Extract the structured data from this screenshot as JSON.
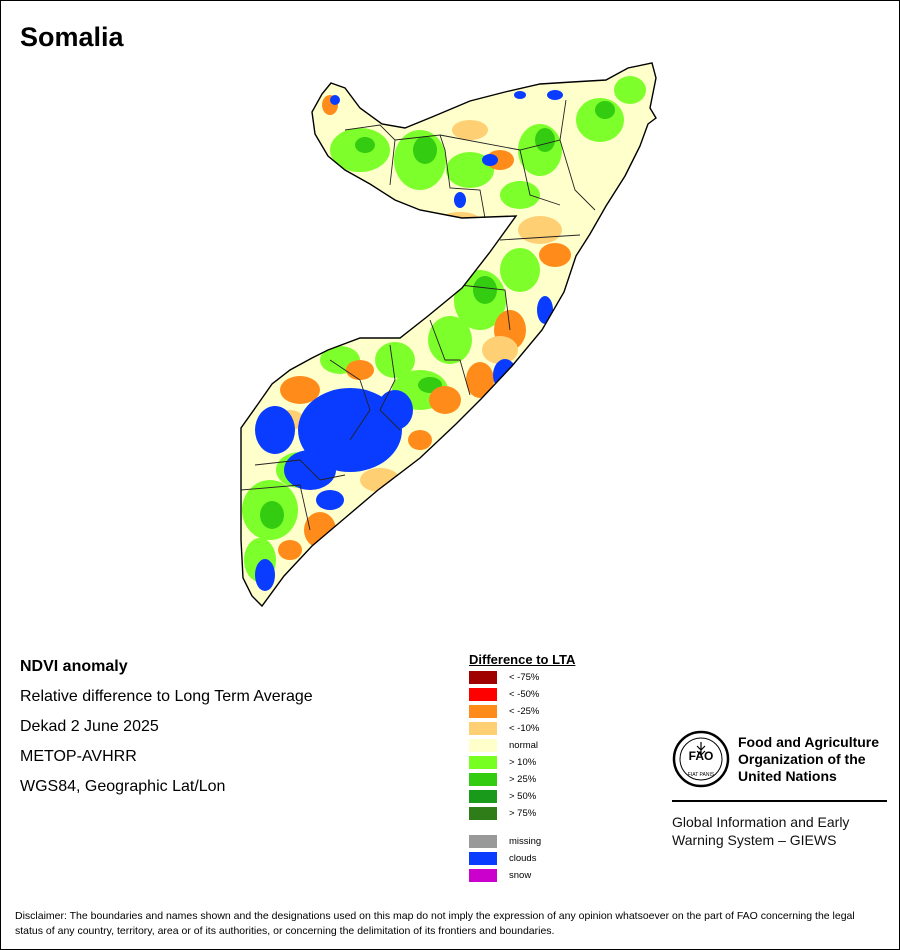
{
  "title": "Somalia",
  "info": {
    "product": "NDVI anomaly",
    "description": "Relative difference to Long Term Average",
    "period": "Dekad 2 June 2025",
    "sensor": "METOP-AVHRR",
    "projection": "WGS84, Geographic Lat/Lon"
  },
  "legend": {
    "title": "Difference to LTA",
    "classes": [
      {
        "label": "< -75%",
        "color": "#a00000"
      },
      {
        "label": "< -50%",
        "color": "#ff0000"
      },
      {
        "label": "< -25%",
        "color": "#ff8c1a"
      },
      {
        "label": "< -10%",
        "color": "#ffcf73"
      },
      {
        "label": "normal",
        "color": "#ffffcc"
      },
      {
        "label": "> 10%",
        "color": "#77ff22"
      },
      {
        "label": "> 25%",
        "color": "#33cc11"
      },
      {
        "label": "> 50%",
        "color": "#1a9a1a"
      },
      {
        "label": "> 75%",
        "color": "#2e7d18"
      }
    ],
    "extra": [
      {
        "label": "missing",
        "color": "#999999"
      },
      {
        "label": "clouds",
        "color": "#0a3cff"
      },
      {
        "label": "snow",
        "color": "#cc00cc"
      }
    ]
  },
  "organization": {
    "logo_text": "FAO",
    "logo_motto": "FIAT PANIS",
    "name": "Food and Agriculture Organization of the United Nations",
    "program": "Global Information and Early Warning System – GIEWS"
  },
  "disclaimer": "Disclaimer: The boundaries and names shown and the designations used on this map do not imply the expression of any opinion whatsoever on the part of FAO concerning the legal status of any country, territory, area or of its authorities, or concerning the delimitation of its frontiers and boundaries."
}
